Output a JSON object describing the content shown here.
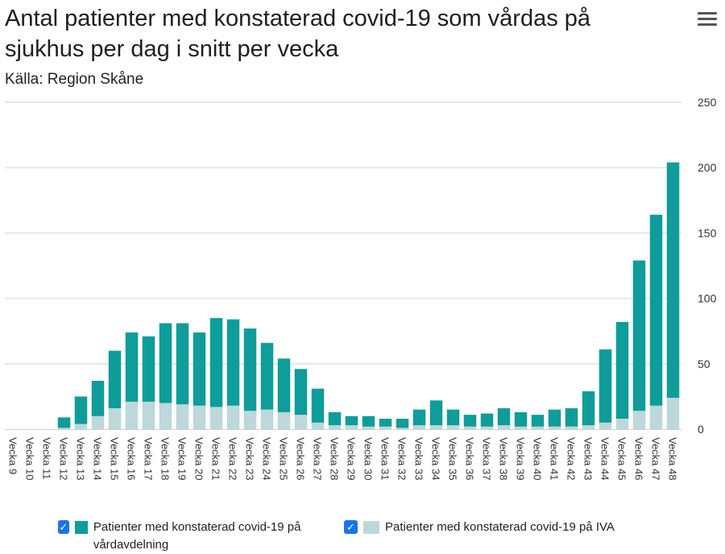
{
  "header": {
    "title": "Antal patienter med konstaterad covid-19 som vårdas på sjukhus per dag i snitt per vecka",
    "subtitle": "Källa: Region Skåne",
    "menu_icon": "hamburger-menu-icon"
  },
  "legend": {
    "items": [
      {
        "label": "Patienter med konstaterad covid-19 på vårdavdelning",
        "color": "#0e9d9a",
        "checked": true
      },
      {
        "label": "Patienter med konstaterad covid-19 på IVA",
        "color": "#bcd8db",
        "checked": true
      }
    ]
  },
  "chart_data": {
    "type": "bar",
    "stacked": true,
    "categories": [
      "Vecka 9",
      "Vecka 10",
      "Vecka 11",
      "Vecka 12",
      "Vecka 13",
      "Vecka 14",
      "Vecka 15",
      "Vecka 16",
      "Vecka 17",
      "Vecka 18",
      "Vecka 19",
      "Vecka 20",
      "Vecka 21",
      "Vecka 22",
      "Vecka 23",
      "Vecka 24",
      "Vecka 25",
      "Vecka 26",
      "Vecka 27",
      "Vecka 28",
      "Vecka 29",
      "Vecka 30",
      "Vecka 31",
      "Vecka 32",
      "Vecka 33",
      "Vecka 34",
      "Vecka 35",
      "Vecka 36",
      "Vecka 37",
      "Vecka 38",
      "Vecka 39",
      "Vecka 40",
      "Vecka 41",
      "Vecka 42",
      "Vecka 43",
      "Vecka 44",
      "Vecka 45",
      "Vecka 46",
      "Vecka 47",
      "Vecka 48"
    ],
    "series": [
      {
        "name": "Patienter med konstaterad covid-19 på vårdavdelning",
        "color": "#0e9d9a",
        "values": [
          0,
          0,
          0,
          8,
          21,
          27,
          44,
          53,
          50,
          61,
          62,
          56,
          68,
          66,
          63,
          51,
          41,
          35,
          26,
          10,
          7,
          8,
          6,
          7,
          12,
          19,
          12,
          9,
          10,
          13,
          11,
          9,
          13,
          14,
          26,
          56,
          74,
          115,
          146,
          180
        ]
      },
      {
        "name": "Patienter med konstaterad covid-19 på IVA",
        "color": "#bcd8db",
        "values": [
          0,
          0,
          0,
          1,
          4,
          10,
          16,
          21,
          21,
          20,
          19,
          18,
          17,
          18,
          14,
          15,
          13,
          11,
          5,
          3,
          3,
          2,
          2,
          1,
          3,
          3,
          3,
          2,
          2,
          3,
          2,
          2,
          2,
          2,
          3,
          5,
          8,
          14,
          18,
          24
        ]
      }
    ],
    "ylim": [
      0,
      250
    ],
    "yticks": [
      0,
      50,
      100,
      150,
      200,
      250
    ],
    "grid": true,
    "legend_position": "bottom"
  }
}
